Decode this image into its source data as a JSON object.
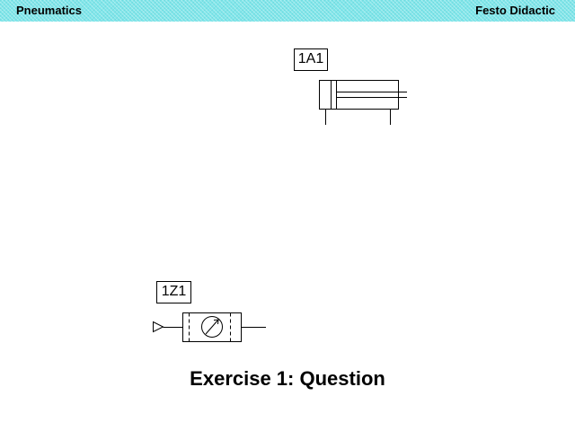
{
  "header": {
    "left_title": "Pneumatics",
    "right_title": "Festo Didactic",
    "background_color": "#7fe6ea"
  },
  "components": {
    "cylinder": {
      "label": "1A1",
      "symbol": "double-acting-cylinder"
    },
    "filter_regulator": {
      "label": "1Z1",
      "symbol": "filter-regulator-with-gauge"
    }
  },
  "caption": "Exercise 1: Question"
}
